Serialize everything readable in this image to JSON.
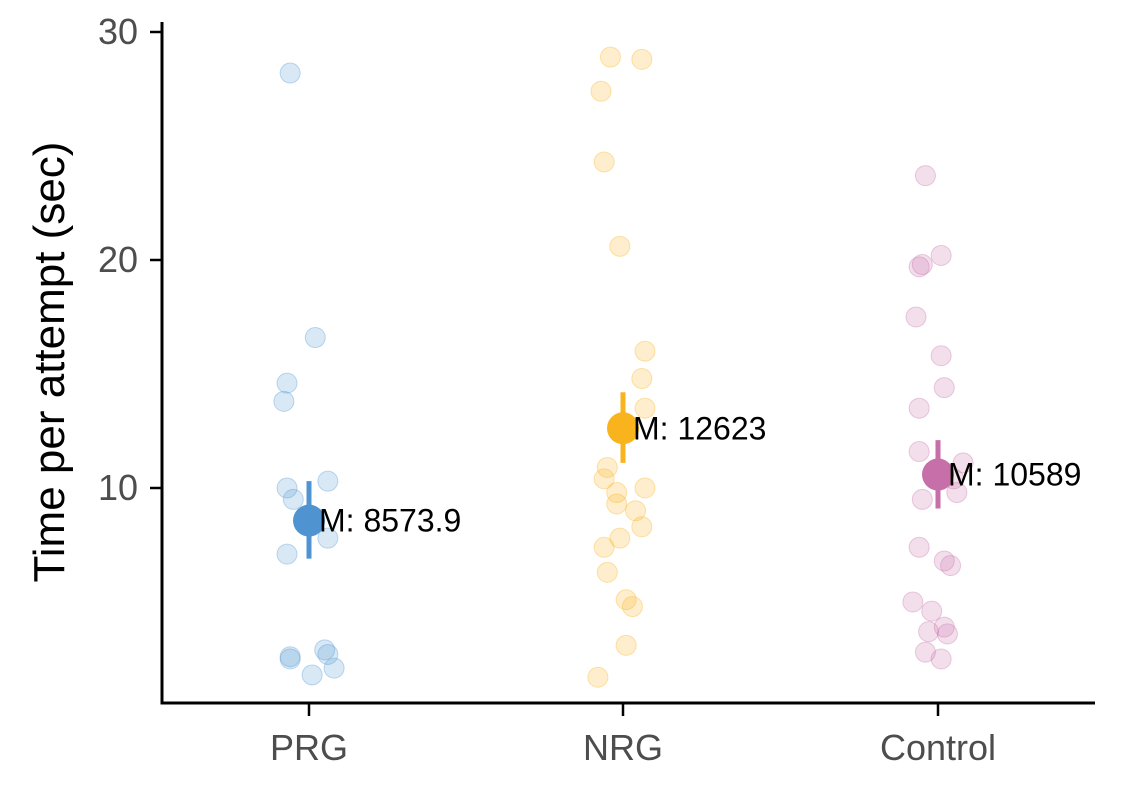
{
  "chart_data": {
    "type": "scatter",
    "title": "",
    "xlabel": "",
    "ylabel": "Time per attempt (sec)",
    "ylim": [
      0.5,
      30
    ],
    "yticks": [
      10,
      20,
      30
    ],
    "grid": false,
    "categories": [
      "PRG",
      "NRG",
      "Control"
    ],
    "series": [
      {
        "category": "PRG",
        "color": "#4f94d0",
        "mean_label": "M: 8573.9",
        "mean": 8.57,
        "error": [
          6.9,
          10.3
        ],
        "points": [
          {
            "x": -0.06,
            "y": 28.2
          },
          {
            "x": 0.02,
            "y": 16.6
          },
          {
            "x": -0.07,
            "y": 14.6
          },
          {
            "x": -0.08,
            "y": 13.8
          },
          {
            "x": -0.07,
            "y": 10.0
          },
          {
            "x": 0.06,
            "y": 10.3
          },
          {
            "x": -0.05,
            "y": 9.5
          },
          {
            "x": 0.06,
            "y": 7.8
          },
          {
            "x": -0.07,
            "y": 7.1
          },
          {
            "x": -0.06,
            "y": 2.6
          },
          {
            "x": -0.06,
            "y": 2.5
          },
          {
            "x": 0.05,
            "y": 2.9
          },
          {
            "x": 0.06,
            "y": 2.7
          },
          {
            "x": 0.08,
            "y": 2.1
          },
          {
            "x": 0.01,
            "y": 1.8
          }
        ]
      },
      {
        "category": "NRG",
        "color": "#f9b31c",
        "mean_label": "M: 12623",
        "mean": 12.62,
        "error": [
          11.1,
          14.2
        ],
        "points": [
          {
            "x": -0.04,
            "y": 28.9
          },
          {
            "x": 0.06,
            "y": 28.8
          },
          {
            "x": -0.07,
            "y": 27.4
          },
          {
            "x": -0.06,
            "y": 24.3
          },
          {
            "x": -0.01,
            "y": 20.6
          },
          {
            "x": 0.07,
            "y": 16.0
          },
          {
            "x": 0.06,
            "y": 14.8
          },
          {
            "x": 0.07,
            "y": 13.5
          },
          {
            "x": -0.05,
            "y": 10.9
          },
          {
            "x": -0.06,
            "y": 10.4
          },
          {
            "x": 0.07,
            "y": 10.0
          },
          {
            "x": -0.02,
            "y": 9.8
          },
          {
            "x": -0.02,
            "y": 9.3
          },
          {
            "x": 0.04,
            "y": 9.0
          },
          {
            "x": 0.06,
            "y": 8.3
          },
          {
            "x": -0.01,
            "y": 7.8
          },
          {
            "x": -0.06,
            "y": 7.4
          },
          {
            "x": -0.05,
            "y": 6.3
          },
          {
            "x": 0.01,
            "y": 5.1
          },
          {
            "x": 0.03,
            "y": 4.8
          },
          {
            "x": 0.01,
            "y": 3.1
          },
          {
            "x": -0.08,
            "y": 1.7
          }
        ]
      },
      {
        "category": "Control",
        "color": "#c76fa8",
        "mean_label": "M: 10589",
        "mean": 10.59,
        "error": [
          9.1,
          12.1
        ],
        "points": [
          {
            "x": -0.04,
            "y": 23.7
          },
          {
            "x": 0.01,
            "y": 20.2
          },
          {
            "x": -0.05,
            "y": 19.8
          },
          {
            "x": -0.06,
            "y": 19.7
          },
          {
            "x": -0.07,
            "y": 17.5
          },
          {
            "x": 0.01,
            "y": 15.8
          },
          {
            "x": 0.02,
            "y": 14.4
          },
          {
            "x": -0.06,
            "y": 13.5
          },
          {
            "x": -0.06,
            "y": 11.6
          },
          {
            "x": 0.08,
            "y": 11.1
          },
          {
            "x": 0.05,
            "y": 10.4
          },
          {
            "x": 0.06,
            "y": 9.8
          },
          {
            "x": -0.05,
            "y": 9.5
          },
          {
            "x": -0.06,
            "y": 7.4
          },
          {
            "x": 0.02,
            "y": 6.8
          },
          {
            "x": 0.04,
            "y": 6.6
          },
          {
            "x": -0.08,
            "y": 5.0
          },
          {
            "x": -0.02,
            "y": 4.6
          },
          {
            "x": 0.02,
            "y": 3.9
          },
          {
            "x": 0.03,
            "y": 3.6
          },
          {
            "x": -0.03,
            "y": 3.7
          },
          {
            "x": -0.04,
            "y": 2.8
          },
          {
            "x": 0.01,
            "y": 2.5
          }
        ]
      }
    ]
  }
}
